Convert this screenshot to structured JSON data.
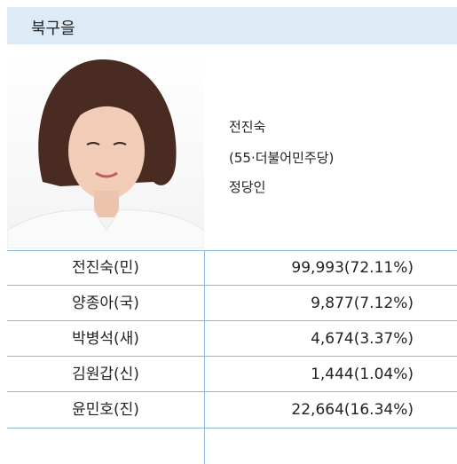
{
  "header": {
    "title": "북구을"
  },
  "profile": {
    "name": "전진숙",
    "detail": "(55·더불어민주당)",
    "occupation": "정당인"
  },
  "table": {
    "rows": [
      [
        "전진숙(민)",
        "99,993(72.11%)"
      ],
      [
        "양종아(국)",
        "9,877(7.12%)"
      ],
      [
        "박병석(새)",
        "4,674(3.37%)"
      ],
      [
        "김원갑(신)",
        "1,444(1.04%)"
      ],
      [
        "윤민호(진)",
        "22,664(16.34%)"
      ]
    ]
  }
}
